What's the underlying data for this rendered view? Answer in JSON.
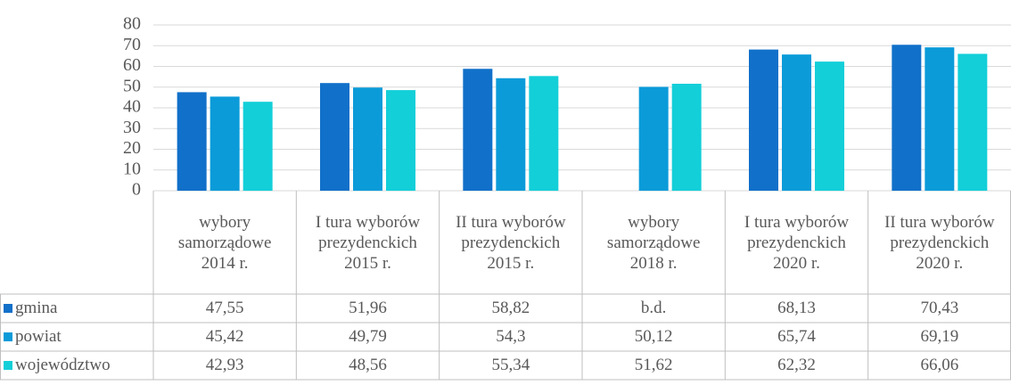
{
  "chart_data": {
    "type": "bar",
    "categories": [
      "wybory samorządowe 2014 r.",
      "I tura wyborów prezydenckich 2015 r.",
      "II tura wyborów prezydenckich 2015 r.",
      "wybory samorządowe 2018 r.",
      "I tura wyborów prezydenckich 2020 r.",
      "II tura wyborów prezydenckich 2020 r."
    ],
    "series": [
      {
        "name": "gmina",
        "color": "#1170c9",
        "values": [
          47.55,
          51.96,
          58.82,
          null,
          68.13,
          70.43
        ],
        "value_labels": [
          "47,55",
          "51,96",
          "58,82",
          "b.d.",
          "68,13",
          "70,43"
        ]
      },
      {
        "name": "powiat",
        "color": "#0b9bd9",
        "values": [
          45.42,
          49.79,
          54.3,
          50.12,
          65.74,
          69.19
        ],
        "value_labels": [
          "45,42",
          "49,79",
          "54,3",
          "50,12",
          "65,74",
          "69,19"
        ]
      },
      {
        "name": "województwo",
        "color": "#13cfd8",
        "values": [
          42.93,
          48.56,
          55.34,
          51.62,
          62.32,
          66.06
        ],
        "value_labels": [
          "42,93",
          "48,56",
          "55,34",
          "51,62",
          "62,32",
          "66,06"
        ]
      }
    ],
    "ylim": [
      0,
      80
    ],
    "yticks": [
      0,
      10,
      20,
      30,
      40,
      50,
      60,
      70,
      80
    ],
    "grid": true
  }
}
